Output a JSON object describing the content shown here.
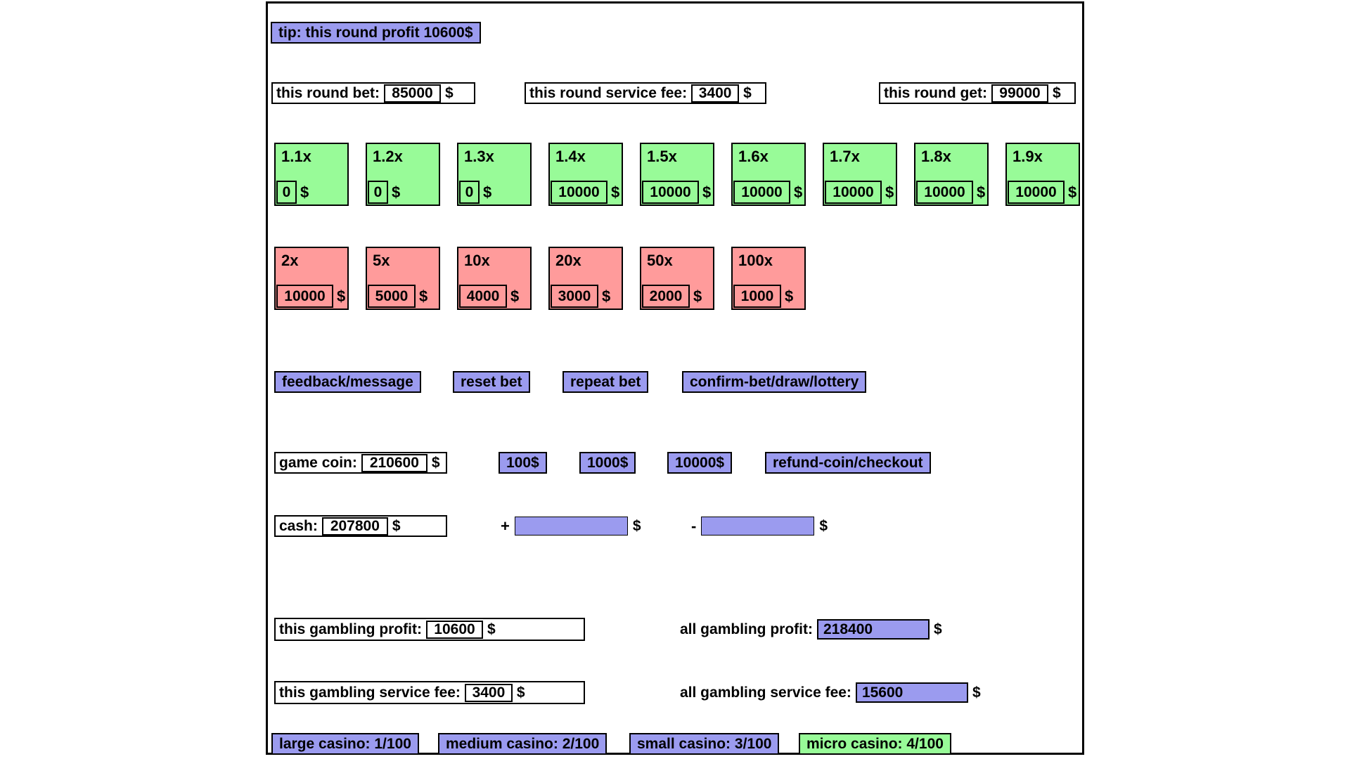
{
  "colors": {
    "purple": "#9b9bef",
    "green": "#98fb98",
    "red": "#ff9b9b"
  },
  "currency": "$",
  "tip": {
    "label": "tip: this round profit 10600$"
  },
  "round": {
    "bet_label": "this round bet:",
    "bet_value": "85000",
    "service_fee_label": "this round service fee:",
    "service_fee_value": "3400",
    "get_label": "this round get:",
    "get_value": "99000"
  },
  "green_multipliers": [
    {
      "label": "1.1x",
      "value": "0"
    },
    {
      "label": "1.2x",
      "value": "0"
    },
    {
      "label": "1.3x",
      "value": "0"
    },
    {
      "label": "1.4x",
      "value": "10000"
    },
    {
      "label": "1.5x",
      "value": "10000"
    },
    {
      "label": "1.6x",
      "value": "10000"
    },
    {
      "label": "1.7x",
      "value": "10000"
    },
    {
      "label": "1.8x",
      "value": "10000"
    },
    {
      "label": "1.9x",
      "value": "10000"
    }
  ],
  "red_multipliers": [
    {
      "label": "2x",
      "value": "10000"
    },
    {
      "label": "5x",
      "value": "5000"
    },
    {
      "label": "10x",
      "value": "4000"
    },
    {
      "label": "20x",
      "value": "3000"
    },
    {
      "label": "50x",
      "value": "2000"
    },
    {
      "label": "100x",
      "value": "1000"
    }
  ],
  "actions": {
    "feedback_label": "feedback/message",
    "reset_label": "reset bet",
    "repeat_label": "repeat bet",
    "confirm_label": "confirm-bet/draw/lottery"
  },
  "coin": {
    "label": "game coin:",
    "value": "210600",
    "add_100_label": "100$",
    "add_1000_label": "1000$",
    "add_10000_label": "10000$",
    "refund_label": "refund-coin/checkout"
  },
  "cash": {
    "label": "cash:",
    "value": "207800",
    "plus_sign": "+",
    "plus_value": "",
    "minus_sign": "-",
    "minus_value": ""
  },
  "stats": {
    "this_profit_label": "this gambling profit:",
    "this_profit_value": "10600",
    "all_profit_label": "all gambling profit:",
    "all_profit_value": "218400",
    "this_fee_label": "this gambling service fee:",
    "this_fee_value": "3400",
    "all_fee_label": "all gambling service fee:",
    "all_fee_value": "15600"
  },
  "casinos": [
    {
      "label": "large casino: 1/100",
      "variant": "purple"
    },
    {
      "label": "medium casino: 2/100",
      "variant": "purple"
    },
    {
      "label": "small casino: 3/100",
      "variant": "purple"
    },
    {
      "label": "micro casino: 4/100",
      "variant": "green"
    }
  ]
}
